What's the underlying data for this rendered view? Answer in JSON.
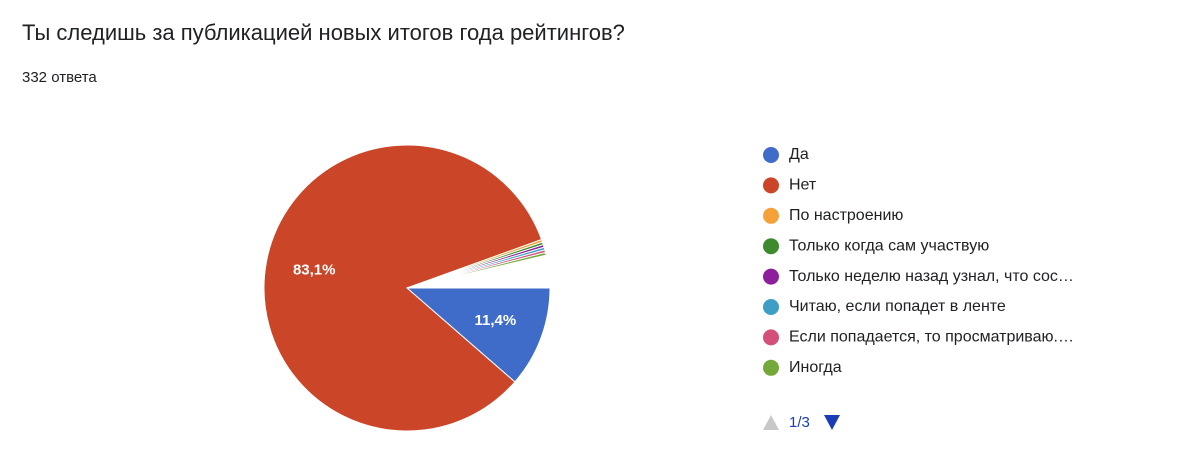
{
  "chart_data": {
    "type": "pie",
    "title": "Ты следишь за публикацией новых итогов года рейтингов?",
    "subtitle": "332 ответа",
    "categories": [
      "Да",
      "Нет",
      "По настроению",
      "Только когда сам участвую",
      "Только неделю назад узнал, что сос…",
      "Читаю, если попадет в ленте",
      "Если попадается, то просматриваю.…",
      "Иногда"
    ],
    "values": [
      11.4,
      83.1,
      0.3,
      0.3,
      0.3,
      0.3,
      0.3,
      0.3
    ],
    "value_labels": [
      "11,4%",
      "83,1%",
      null,
      null,
      null,
      null,
      null,
      null
    ],
    "colors": [
      "#3f6bc9",
      "#cb4628",
      "#f5a13a",
      "#3d8b2d",
      "#8c1f9b",
      "#3f9ec5",
      "#d2507a",
      "#74a83a"
    ],
    "legend_page": "1/3",
    "legend": "right"
  }
}
